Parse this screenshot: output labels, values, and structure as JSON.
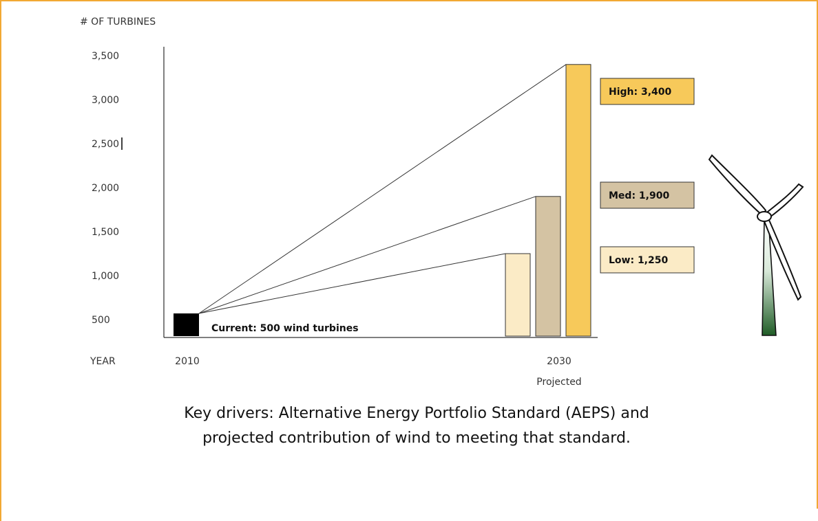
{
  "chart_data": {
    "type": "bar",
    "ylabel": "# OF TURBINES",
    "xlabel": "YEAR",
    "y_ticks": [
      "3,500",
      "3,000",
      "2,500",
      "2,000",
      "1,500",
      "1,000",
      "500"
    ],
    "y_tick_values": [
      3500,
      3000,
      2500,
      2000,
      1500,
      1000,
      500
    ],
    "ylim": [
      0,
      3500
    ],
    "grid": false,
    "x_ticks": [
      "2010",
      "2030"
    ],
    "x_subtick": "Projected",
    "current": {
      "year": "2010",
      "value": 500,
      "label": "Current: 500 wind turbines",
      "color": "#000000"
    },
    "projections": [
      {
        "name": "Low",
        "year": "2030",
        "value": 1250,
        "label": "Low: 1,250",
        "color": "#fbebc6"
      },
      {
        "name": "Med",
        "year": "2030",
        "value": 1900,
        "label": "Med: 1,900",
        "color": "#d4c3a3"
      },
      {
        "name": "High",
        "year": "2030",
        "value": 3400,
        "label": "High: 3,400",
        "color": "#f7c95a"
      }
    ]
  },
  "caption": {
    "line1": "Key drivers: Alternative Energy Portfolio Standard (AEPS) and",
    "line2": "projected contribution of wind to meeting that standard."
  },
  "turbine": {
    "icon": "wind-turbine-icon",
    "tower_color": "#2e6b34"
  }
}
